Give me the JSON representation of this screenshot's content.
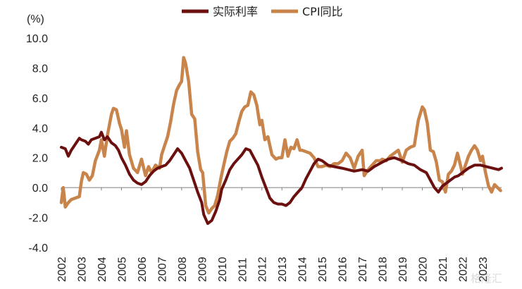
{
  "chart_data": {
    "type": "line",
    "ylabel": "(%)",
    "ylim": [
      -4.0,
      10.0
    ],
    "y_ticks": [
      "10.0",
      "8.0",
      "6.0",
      "4.0",
      "2.0",
      "0.0",
      "-2.0",
      "-4.0"
    ],
    "x_ticks": [
      "2002",
      "2003",
      "2004",
      "2005",
      "2006",
      "2007",
      "2008",
      "2009",
      "2010",
      "2011",
      "2012",
      "2013",
      "2014",
      "2015",
      "2016",
      "2017",
      "2018",
      "2019",
      "2020",
      "2021",
      "2022",
      "2023"
    ],
    "xlim": [
      2002.0,
      2023.95
    ],
    "legend_position": "top-center",
    "series": [
      {
        "name": "实际利率",
        "color": "#6b0f0f",
        "x": [
          2002.0,
          2002.2,
          2002.35,
          2002.5,
          2002.7,
          2002.9,
          2003.0,
          2003.2,
          2003.35,
          2003.5,
          2003.7,
          2003.9,
          2004.0,
          2004.15,
          2004.3,
          2004.5,
          2004.7,
          2004.85,
          2005.0,
          2005.2,
          2005.4,
          2005.6,
          2005.8,
          2006.0,
          2006.2,
          2006.4,
          2006.6,
          2006.8,
          2007.0,
          2007.2,
          2007.4,
          2007.6,
          2007.8,
          2008.0,
          2008.2,
          2008.4,
          2008.6,
          2008.8,
          2009.0,
          2009.1,
          2009.3,
          2009.5,
          2009.7,
          2009.9,
          2010.0,
          2010.2,
          2010.4,
          2010.6,
          2010.8,
          2011.0,
          2011.2,
          2011.4,
          2011.6,
          2011.8,
          2012.0,
          2012.2,
          2012.4,
          2012.6,
          2012.8,
          2013.0,
          2013.2,
          2013.4,
          2013.6,
          2013.8,
          2014.0,
          2014.2,
          2014.4,
          2014.6,
          2014.8,
          2015.0,
          2015.3,
          2015.6,
          2016.0,
          2016.3,
          2016.6,
          2017.0,
          2017.3,
          2017.6,
          2018.0,
          2018.3,
          2018.6,
          2019.0,
          2019.3,
          2019.6,
          2019.9,
          2020.2,
          2020.4,
          2020.6,
          2020.8,
          2021.0,
          2021.2,
          2021.4,
          2021.6,
          2021.8,
          2022.0,
          2022.3,
          2022.6,
          2022.9,
          2023.2,
          2023.5,
          2023.8,
          2023.95
        ],
        "y": [
          2.7,
          2.6,
          2.1,
          2.5,
          2.9,
          3.3,
          3.2,
          3.1,
          2.9,
          3.2,
          3.3,
          3.4,
          3.7,
          3.2,
          3.4,
          3.0,
          2.8,
          2.5,
          2.0,
          1.5,
          0.9,
          0.5,
          0.3,
          0.2,
          0.4,
          0.8,
          1.1,
          1.3,
          1.4,
          1.5,
          1.8,
          2.2,
          2.6,
          2.3,
          1.8,
          1.3,
          0.5,
          -0.3,
          -1.0,
          -1.8,
          -2.4,
          -2.2,
          -1.6,
          -0.8,
          -0.1,
          0.5,
          1.2,
          1.6,
          1.9,
          2.2,
          2.6,
          2.5,
          2.0,
          1.5,
          0.7,
          0.0,
          -0.7,
          -1.0,
          -1.1,
          -1.1,
          -1.2,
          -1.0,
          -0.6,
          -0.3,
          0.0,
          0.6,
          1.1,
          1.6,
          1.9,
          1.8,
          1.5,
          1.4,
          1.3,
          1.2,
          1.1,
          1.2,
          1.1,
          1.4,
          1.7,
          1.9,
          2.0,
          1.8,
          1.6,
          1.5,
          1.2,
          1.0,
          0.5,
          0.0,
          -0.3,
          0.1,
          0.3,
          0.5,
          0.7,
          0.8,
          1.0,
          1.3,
          1.5,
          1.5,
          1.4,
          1.3,
          1.2,
          1.3
        ]
      },
      {
        "name": "CPI同比",
        "color": "#c8844a",
        "x": [
          2002.0,
          2002.1,
          2002.2,
          2002.35,
          2002.5,
          2002.7,
          2002.9,
          2003.0,
          2003.1,
          2003.25,
          2003.4,
          2003.55,
          2003.7,
          2003.9,
          2004.0,
          2004.15,
          2004.3,
          2004.5,
          2004.6,
          2004.75,
          2004.9,
          2005.0,
          2005.15,
          2005.25,
          2005.4,
          2005.6,
          2005.8,
          2006.0,
          2006.2,
          2006.35,
          2006.5,
          2006.7,
          2006.9,
          2007.0,
          2007.15,
          2007.3,
          2007.45,
          2007.6,
          2007.75,
          2007.9,
          2008.0,
          2008.1,
          2008.2,
          2008.35,
          2008.5,
          2008.65,
          2008.8,
          2008.95,
          2009.05,
          2009.2,
          2009.35,
          2009.5,
          2009.65,
          2009.8,
          2009.95,
          2010.1,
          2010.25,
          2010.4,
          2010.55,
          2010.7,
          2010.85,
          2011.0,
          2011.15,
          2011.3,
          2011.45,
          2011.6,
          2011.75,
          2011.9,
          2012.0,
          2012.15,
          2012.3,
          2012.5,
          2012.7,
          2012.85,
          2013.0,
          2013.15,
          2013.3,
          2013.45,
          2013.6,
          2013.75,
          2013.9,
          2014.0,
          2014.2,
          2014.4,
          2014.6,
          2014.8,
          2015.0,
          2015.2,
          2015.4,
          2015.6,
          2015.8,
          2016.0,
          2016.2,
          2016.4,
          2016.6,
          2016.8,
          2017.0,
          2017.1,
          2017.3,
          2017.5,
          2017.7,
          2017.9,
          2018.0,
          2018.2,
          2018.4,
          2018.6,
          2018.8,
          2019.0,
          2019.2,
          2019.4,
          2019.6,
          2019.8,
          2020.0,
          2020.1,
          2020.25,
          2020.4,
          2020.55,
          2020.7,
          2020.85,
          2021.0,
          2021.15,
          2021.3,
          2021.45,
          2021.6,
          2021.75,
          2021.9,
          2022.0,
          2022.15,
          2022.3,
          2022.45,
          2022.6,
          2022.75,
          2022.9,
          2023.0,
          2023.15,
          2023.3,
          2023.45,
          2023.6,
          2023.75,
          2023.9
        ],
        "y": [
          -1.0,
          0.0,
          -1.3,
          -1.0,
          -0.8,
          -0.7,
          -0.6,
          0.4,
          1.0,
          0.9,
          0.5,
          0.8,
          1.8,
          2.5,
          3.2,
          2.1,
          3.5,
          4.9,
          5.3,
          5.2,
          4.3,
          3.9,
          2.7,
          3.8,
          2.2,
          1.3,
          1.0,
          1.9,
          0.8,
          1.4,
          1.0,
          1.5,
          1.3,
          2.2,
          2.8,
          3.4,
          4.4,
          5.6,
          6.5,
          6.9,
          7.1,
          8.7,
          8.3,
          7.1,
          4.9,
          4.6,
          2.4,
          1.2,
          1.0,
          -1.2,
          -1.7,
          -1.4,
          -1.2,
          -0.5,
          0.6,
          1.5,
          2.4,
          3.1,
          3.3,
          3.6,
          4.4,
          5.1,
          5.4,
          5.5,
          6.4,
          6.2,
          5.5,
          4.2,
          4.5,
          3.2,
          3.4,
          2.2,
          1.9,
          2.0,
          2.0,
          3.2,
          2.1,
          2.7,
          2.6,
          3.2,
          2.5,
          2.5,
          2.4,
          2.3,
          2.0,
          1.4,
          1.4,
          1.5,
          1.4,
          1.6,
          1.6,
          1.8,
          2.3,
          2.0,
          1.3,
          2.1,
          2.5,
          0.8,
          1.2,
          1.5,
          1.8,
          1.8,
          1.9,
          1.8,
          2.1,
          2.3,
          2.5,
          1.7,
          2.5,
          2.7,
          2.8,
          4.5,
          5.4,
          5.2,
          4.3,
          2.5,
          2.4,
          1.7,
          0.5,
          0.4,
          -0.3,
          0.9,
          1.1,
          1.5,
          2.3,
          1.5,
          0.9,
          1.5,
          2.1,
          2.5,
          2.8,
          2.5,
          1.8,
          2.1,
          1.0,
          0.1,
          -0.3,
          0.2,
          0.0,
          -0.2
        ]
      }
    ]
  },
  "watermark": "格隆汇"
}
